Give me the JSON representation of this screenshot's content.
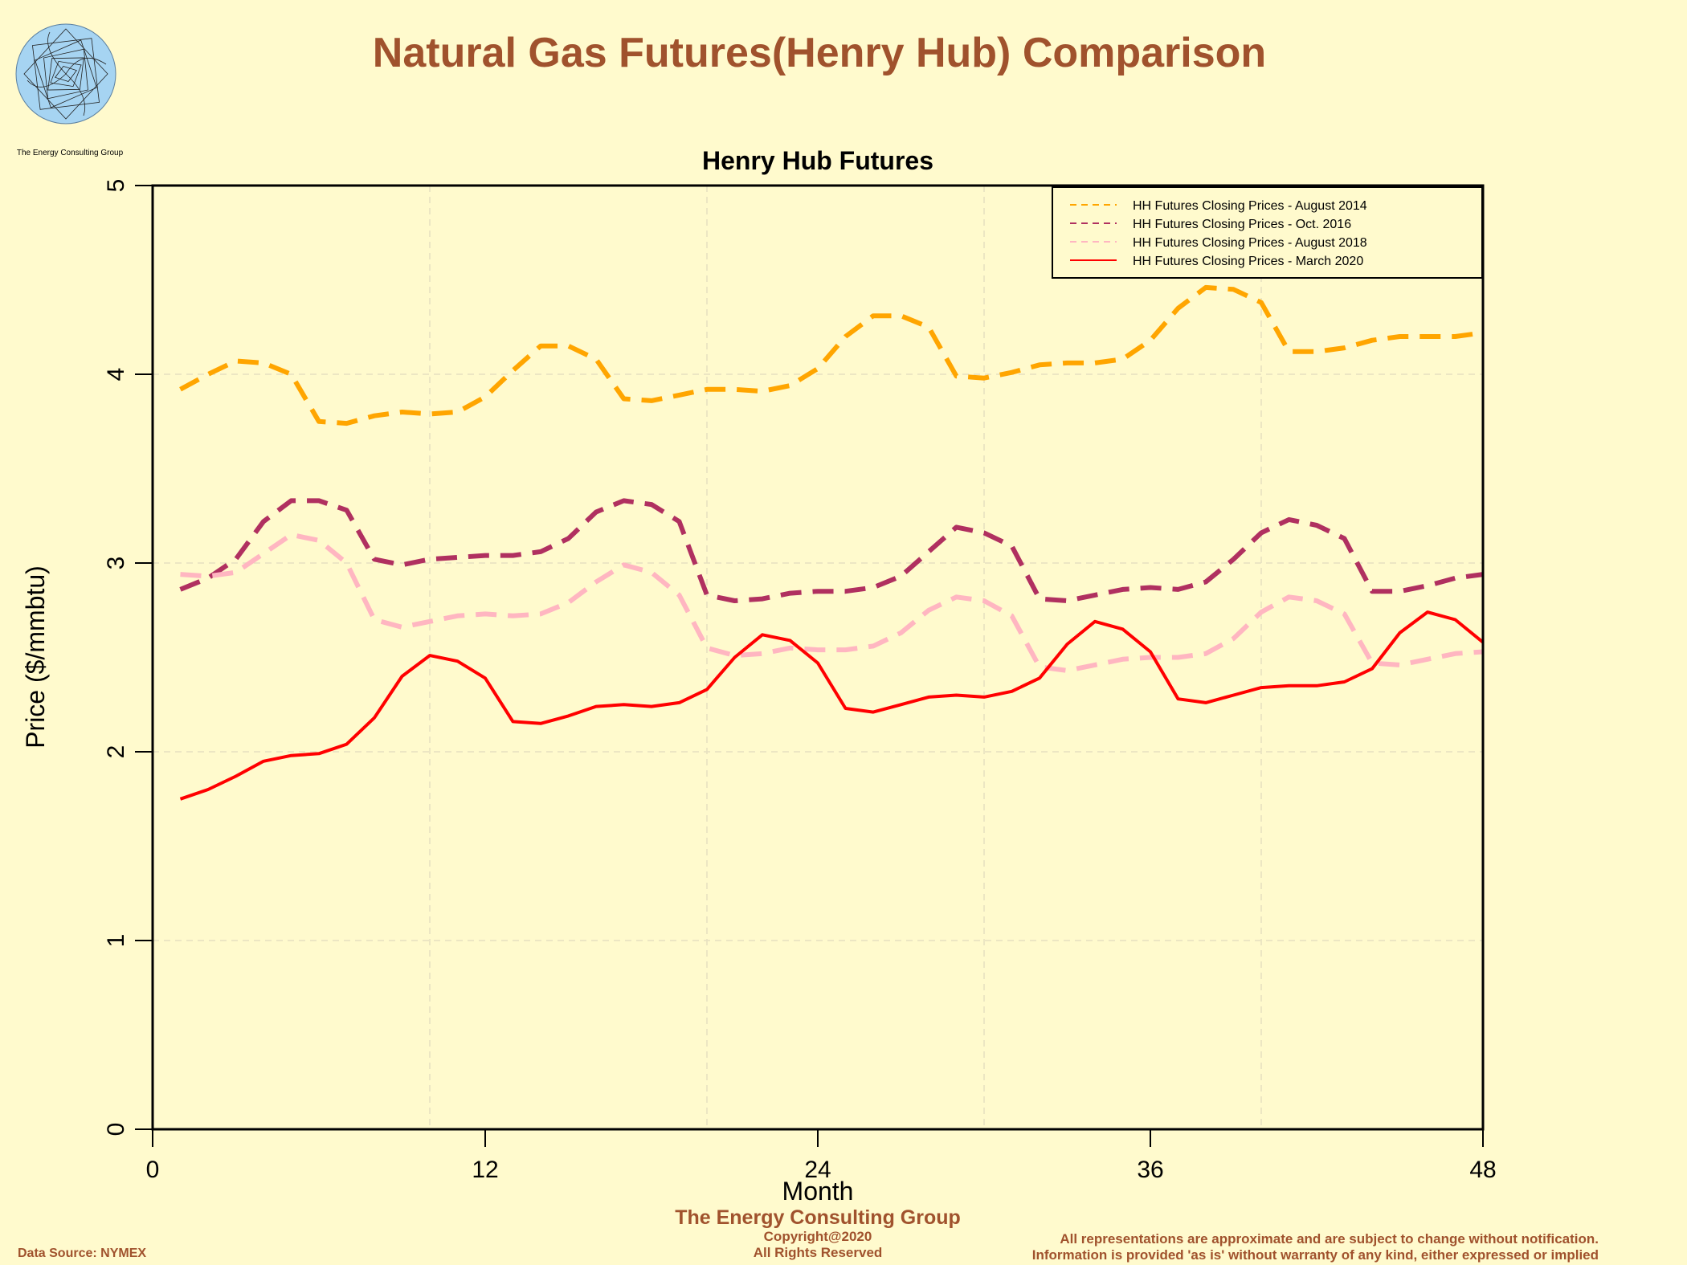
{
  "header": {
    "main_title": "Natural Gas Futures(Henry Hub) Comparison",
    "logo_caption": "The Energy Consulting Group"
  },
  "footer": {
    "org": "The Energy Consulting Group",
    "copyright_line1": "Copyright@2020",
    "copyright_line2": "All Rights Reserved",
    "source": "Data Source: NYMEX",
    "disclaimer_line1": "All representations are approximate and are subject to change without notification.",
    "disclaimer_line2": "Information is provided 'as is' without warranty of any kind, either expressed or implied"
  },
  "colors": {
    "background": "#fffacd",
    "title": "#a0522d",
    "logo_fill": "#a6d4f2"
  },
  "chart_data": {
    "type": "line",
    "title": "Henry Hub Futures",
    "xlabel": "Month",
    "ylabel": "Price ($/mmbtu)",
    "xlim": [
      0,
      48
    ],
    "ylim": [
      0,
      5
    ],
    "xticks": [
      0,
      12,
      24,
      36,
      48
    ],
    "yticks": [
      0,
      1,
      2,
      3,
      4,
      5
    ],
    "grid": true,
    "legend_position": "top-right",
    "x": [
      1,
      2,
      3,
      4,
      5,
      6,
      7,
      8,
      9,
      10,
      11,
      12,
      13,
      14,
      15,
      16,
      17,
      18,
      19,
      20,
      21,
      22,
      23,
      24,
      25,
      26,
      27,
      28,
      29,
      30,
      31,
      32,
      33,
      34,
      35,
      36,
      37,
      38,
      39,
      40,
      41,
      42,
      43,
      44,
      45,
      46,
      47,
      48
    ],
    "series": [
      {
        "name": "HH Futures Closing Prices - August 2014",
        "color": "#ffa500",
        "dash": "dashed",
        "values": [
          3.92,
          4.0,
          4.07,
          4.06,
          4.0,
          3.75,
          3.74,
          3.78,
          3.8,
          3.79,
          3.8,
          3.88,
          4.02,
          4.15,
          4.15,
          4.08,
          3.87,
          3.86,
          3.89,
          3.92,
          3.92,
          3.91,
          3.94,
          4.03,
          4.2,
          4.31,
          4.31,
          4.25,
          3.99,
          3.98,
          4.01,
          4.05,
          4.06,
          4.06,
          4.08,
          4.18,
          4.35,
          4.46,
          4.45,
          4.38,
          4.12,
          4.12,
          4.14,
          4.18,
          4.2,
          4.2,
          4.2,
          4.22
        ]
      },
      {
        "name": "HH Futures Closing Prices - Oct. 2016",
        "color": "#b03060",
        "dash": "dashed",
        "values": [
          2.86,
          2.92,
          3.02,
          3.22,
          3.33,
          3.33,
          3.28,
          3.02,
          2.99,
          3.02,
          3.03,
          3.04,
          3.04,
          3.06,
          3.13,
          3.27,
          3.33,
          3.31,
          3.22,
          2.83,
          2.8,
          2.81,
          2.84,
          2.85,
          2.85,
          2.87,
          2.93,
          3.06,
          3.19,
          3.16,
          3.09,
          2.81,
          2.8,
          2.83,
          2.86,
          2.87,
          2.86,
          2.9,
          3.02,
          3.16,
          3.23,
          3.2,
          3.13,
          2.85,
          2.85,
          2.88,
          2.92,
          2.94
        ]
      },
      {
        "name": "HH Futures Closing Prices - August 2018",
        "color": "#ffb6c1",
        "dash": "dashed",
        "values": [
          2.94,
          2.93,
          2.95,
          3.05,
          3.15,
          3.12,
          3.0,
          2.7,
          2.66,
          2.69,
          2.72,
          2.73,
          2.72,
          2.73,
          2.79,
          2.9,
          2.99,
          2.95,
          2.83,
          2.55,
          2.51,
          2.52,
          2.55,
          2.54,
          2.54,
          2.56,
          2.63,
          2.75,
          2.82,
          2.8,
          2.72,
          2.45,
          2.43,
          2.46,
          2.49,
          2.5,
          2.5,
          2.52,
          2.6,
          2.74,
          2.82,
          2.8,
          2.73,
          2.47,
          2.46,
          2.49,
          2.52,
          2.53
        ]
      },
      {
        "name": "HH Futures Closing Prices - March 2020",
        "color": "#ff0000",
        "dash": "solid",
        "values": [
          1.75,
          1.8,
          1.87,
          1.95,
          1.98,
          1.99,
          2.04,
          2.18,
          2.4,
          2.51,
          2.48,
          2.39,
          2.16,
          2.15,
          2.19,
          2.24,
          2.25,
          2.24,
          2.26,
          2.33,
          2.5,
          2.62,
          2.59,
          2.47,
          2.23,
          2.21,
          2.25,
          2.29,
          2.3,
          2.29,
          2.32,
          2.39,
          2.57,
          2.69,
          2.65,
          2.53,
          2.28,
          2.26,
          2.3,
          2.34,
          2.35,
          2.35,
          2.37,
          2.44,
          2.63,
          2.74,
          2.7,
          2.58
        ]
      }
    ]
  }
}
